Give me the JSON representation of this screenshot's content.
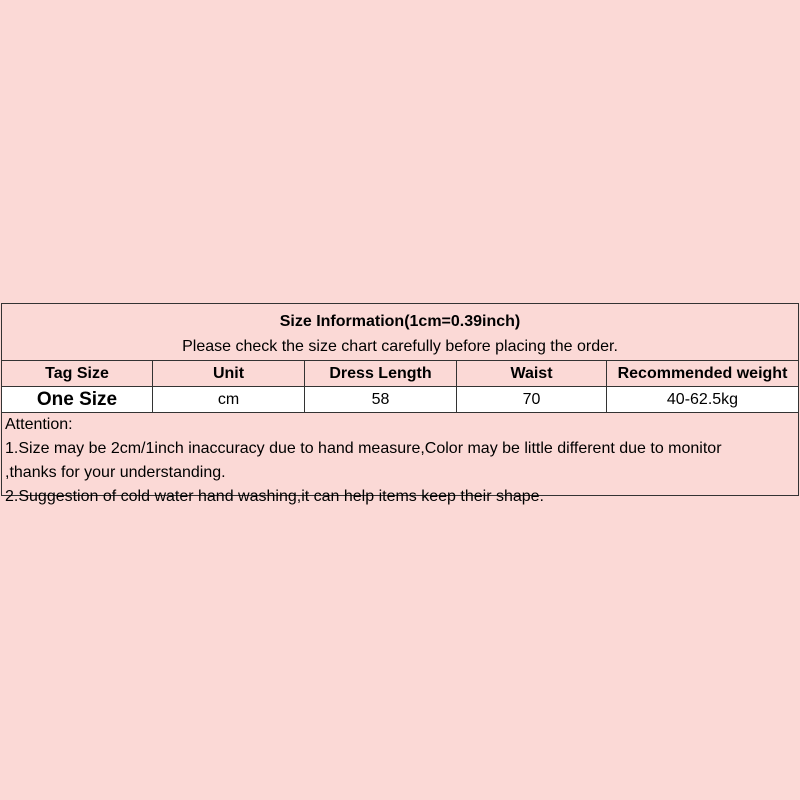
{
  "title": "Size Information(1cm=0.39inch)",
  "subtitle": "Please check the size chart carefully before placing the order.",
  "headers": [
    "Tag Size",
    "Unit",
    "Dress Length",
    "Waist",
    "Recommended weight"
  ],
  "row": [
    "One Size",
    "cm",
    "58",
    "70",
    "40-62.5kg"
  ],
  "notes": [
    "Attention:",
    "1.Size may be 2cm/1inch inaccuracy due to hand measure,Color may be little different due to monitor",
    ",thanks for your understanding.",
    "2.Suggestion of cold water hand washing,it can help items keep their shape."
  ],
  "colors": {
    "background": "#fbd9d6",
    "data_row": "#ffffff"
  }
}
